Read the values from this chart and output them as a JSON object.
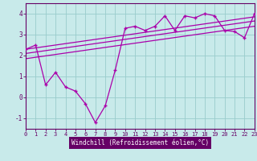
{
  "xlabel": "Windchill (Refroidissement éolien,°C)",
  "bg_color": "#c8eaea",
  "line_color": "#aa00aa",
  "grid_color": "#99cccc",
  "spine_color": "#660066",
  "x_data": [
    0,
    1,
    2,
    3,
    4,
    5,
    6,
    7,
    8,
    9,
    10,
    11,
    12,
    13,
    14,
    15,
    16,
    17,
    18,
    19,
    20,
    21,
    22,
    23
  ],
  "y_data": [
    2.3,
    2.5,
    0.6,
    1.2,
    0.5,
    0.3,
    -0.3,
    -1.2,
    -0.4,
    1.3,
    3.3,
    3.4,
    3.2,
    3.4,
    3.9,
    3.2,
    3.9,
    3.8,
    4.0,
    3.9,
    3.2,
    3.15,
    2.85,
    4.0
  ],
  "reg_lines": [
    [
      2.3,
      3.85
    ],
    [
      2.1,
      3.65
    ],
    [
      1.85,
      3.4
    ]
  ],
  "ylim": [
    -1.5,
    4.5
  ],
  "xlim": [
    0,
    23
  ],
  "yticks": [
    -1,
    0,
    1,
    2,
    3,
    4
  ],
  "xticks": [
    0,
    1,
    2,
    3,
    4,
    5,
    6,
    7,
    8,
    9,
    10,
    11,
    12,
    13,
    14,
    15,
    16,
    17,
    18,
    19,
    20,
    21,
    22,
    23
  ],
  "tick_fontsize": 5,
  "xlabel_fontsize": 5.5
}
